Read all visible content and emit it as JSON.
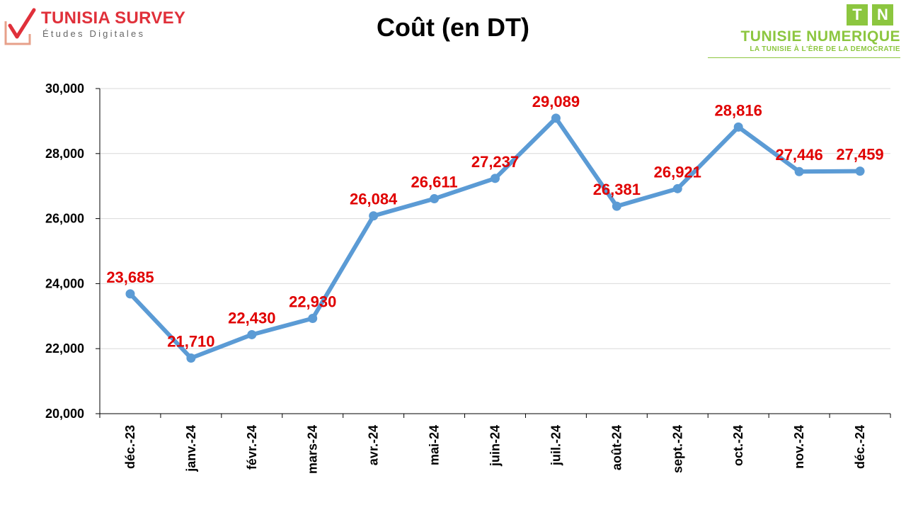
{
  "header": {
    "left_logo": {
      "brand": "TUNISIA SURVEY",
      "tagline": "Études Digitales",
      "icon": "checkmark-icon"
    },
    "right_logo": {
      "letters": [
        "T",
        "N"
      ],
      "name": "TUNISIE NUMERIQUE",
      "slogan": "LA TUNISIE À L'ÈRE DE LA DEMOCRATIE"
    }
  },
  "colors": {
    "line": "#5b9bd5",
    "data_labels": "#e00000",
    "gridlines": "#d9d9d9",
    "brand_red": "#e0303a",
    "brand_green": "#8cc63f"
  },
  "chart_data": {
    "type": "line",
    "title": "Coût (en DT)",
    "xlabel": "",
    "ylabel": "",
    "categories": [
      "déc.-23",
      "janv.-24",
      "févr.-24",
      "mars-24",
      "avr.-24",
      "mai-24",
      "juin-24",
      "juil.-24",
      "août-24",
      "sept.-24",
      "oct.-24",
      "nov.-24",
      "déc.-24"
    ],
    "series": [
      {
        "values": [
          23685,
          21710,
          22430,
          22930,
          26084,
          26611,
          27237,
          29089,
          26381,
          26921,
          28816,
          27446,
          27459
        ],
        "labels": [
          "23,685",
          "21,710",
          "22,430",
          "22,930",
          "26,084",
          "26,611",
          "27,237",
          "29,089",
          "26,381",
          "26,921",
          "28,816",
          "27,446",
          "27,459"
        ]
      }
    ],
    "ylim": [
      20000,
      30000
    ],
    "yticks": [
      "20,000",
      "22,000",
      "24,000",
      "26,000",
      "28,000",
      "30,000"
    ],
    "grid": true,
    "legend": "none"
  }
}
